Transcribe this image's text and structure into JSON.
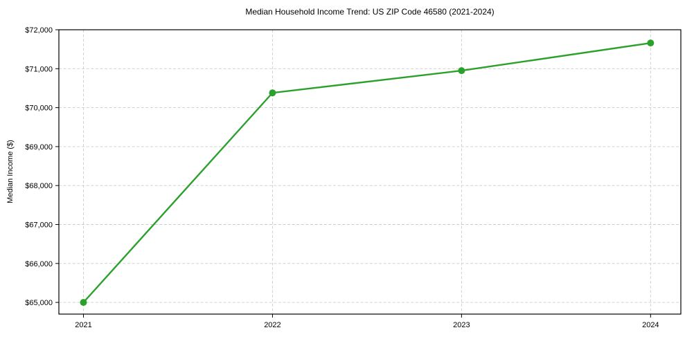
{
  "chart_data": {
    "type": "line",
    "title": "Median Household Income Trend: US ZIP Code 46580 (2021-2024)",
    "xlabel": "",
    "ylabel": "Median Income ($)",
    "categories": [
      "2021",
      "2022",
      "2023",
      "2024"
    ],
    "x": [
      2021,
      2022,
      2023,
      2024
    ],
    "series": [
      {
        "name": "Median Household Income",
        "values": [
          65000,
          70380,
          70950,
          71660
        ]
      }
    ],
    "y_ticks": [
      {
        "value": 65000,
        "label": "$65,000"
      },
      {
        "value": 66000,
        "label": "$66,000"
      },
      {
        "value": 67000,
        "label": "$67,000"
      },
      {
        "value": 68000,
        "label": "$68,000"
      },
      {
        "value": 69000,
        "label": "$69,000"
      },
      {
        "value": 70000,
        "label": "$70,000"
      },
      {
        "value": 71000,
        "label": "$71,000"
      },
      {
        "value": 72000,
        "label": "$72,000"
      }
    ],
    "xlim": [
      2020.87,
      2024.16
    ],
    "ylim": [
      64700,
      72000
    ],
    "grid": true,
    "legend": "none",
    "colors": {
      "line": "#2ca02c",
      "marker": "#2ca02c",
      "grid": "#cccccc",
      "axis": "#000000",
      "background": "#ffffff",
      "text": "#000000"
    },
    "marker_radius": 5,
    "line_width": 2.4
  }
}
